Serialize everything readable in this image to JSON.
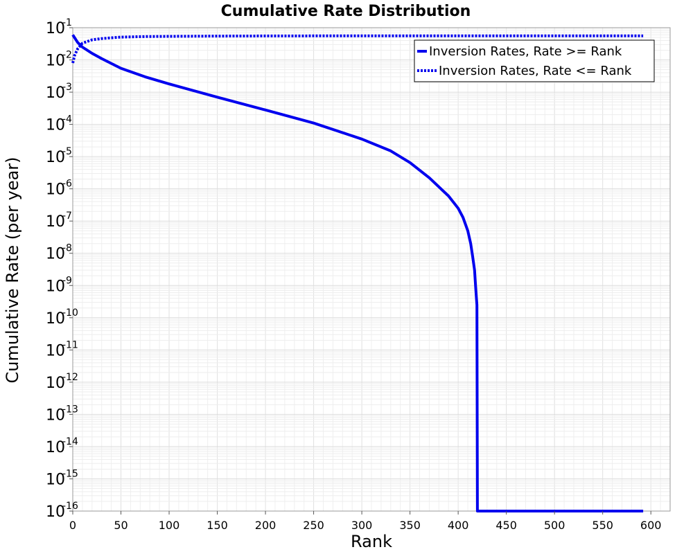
{
  "chart_data": {
    "type": "line",
    "title": "Cumulative Rate Distribution",
    "xlabel": "Rank",
    "ylabel": "Cumulative Rate (per year)",
    "xlim": [
      0,
      620
    ],
    "ylim": [
      1e-16,
      0.1
    ],
    "yscale": "log",
    "grid": true,
    "legend_position": "top-right",
    "x_ticks": [
      0,
      50,
      100,
      150,
      200,
      250,
      300,
      350,
      400,
      450,
      500,
      550,
      600
    ],
    "y_ticks": [
      {
        "base": "10",
        "exp": "-1",
        "value": 0.1
      },
      {
        "base": "10",
        "exp": "-2",
        "value": 0.01
      },
      {
        "base": "10",
        "exp": "-3",
        "value": 0.001
      },
      {
        "base": "10",
        "exp": "-4",
        "value": 0.0001
      },
      {
        "base": "10",
        "exp": "-5",
        "value": 1e-05
      },
      {
        "base": "10",
        "exp": "-6",
        "value": 1e-06
      },
      {
        "base": "10",
        "exp": "-7",
        "value": 1e-07
      },
      {
        "base": "10",
        "exp": "-8",
        "value": 1e-08
      },
      {
        "base": "10",
        "exp": "-9",
        "value": 1e-09
      },
      {
        "base": "10",
        "exp": "-10",
        "value": 1e-10
      },
      {
        "base": "10",
        "exp": "-11",
        "value": 1e-11
      },
      {
        "base": "10",
        "exp": "-12",
        "value": 1e-12
      },
      {
        "base": "10",
        "exp": "-13",
        "value": 1e-13
      },
      {
        "base": "10",
        "exp": "-14",
        "value": 1e-14
      },
      {
        "base": "10",
        "exp": "-15",
        "value": 1e-15
      },
      {
        "base": "10",
        "exp": "-16",
        "value": 1e-16
      }
    ],
    "series": [
      {
        "name": "Inversion Rates, Rate >= Rank",
        "style": "solid",
        "color": "#0000ee",
        "x": [
          0,
          5,
          10,
          20,
          30,
          50,
          75,
          100,
          150,
          200,
          250,
          300,
          330,
          350,
          370,
          390,
          400,
          405,
          410,
          413,
          415,
          417,
          418,
          419,
          419.5,
          420,
          421,
          450,
          500,
          550,
          592
        ],
        "y": [
          0.06,
          0.035,
          0.025,
          0.016,
          0.011,
          0.0055,
          0.003,
          0.0018,
          0.0007,
          0.00028,
          0.00011,
          3.5e-05,
          1.5e-05,
          6.5e-06,
          2.2e-06,
          6e-07,
          2.5e-07,
          1.3e-07,
          5e-08,
          2e-08,
          8e-09,
          3e-09,
          1e-09,
          4e-10,
          2.5e-10,
          1e-16,
          1e-16,
          1e-16,
          1e-16,
          1e-16,
          1e-16
        ]
      },
      {
        "name": "Inversion Rates, Rate <= Rank",
        "style": "dotted",
        "color": "#0000ee",
        "x": [
          0,
          2,
          5,
          10,
          20,
          30,
          50,
          75,
          100,
          150,
          200,
          300,
          400,
          500,
          592
        ],
        "y": [
          0.008,
          0.014,
          0.022,
          0.033,
          0.042,
          0.046,
          0.051,
          0.053,
          0.054,
          0.055,
          0.0555,
          0.056,
          0.056,
          0.056,
          0.056
        ]
      }
    ]
  }
}
